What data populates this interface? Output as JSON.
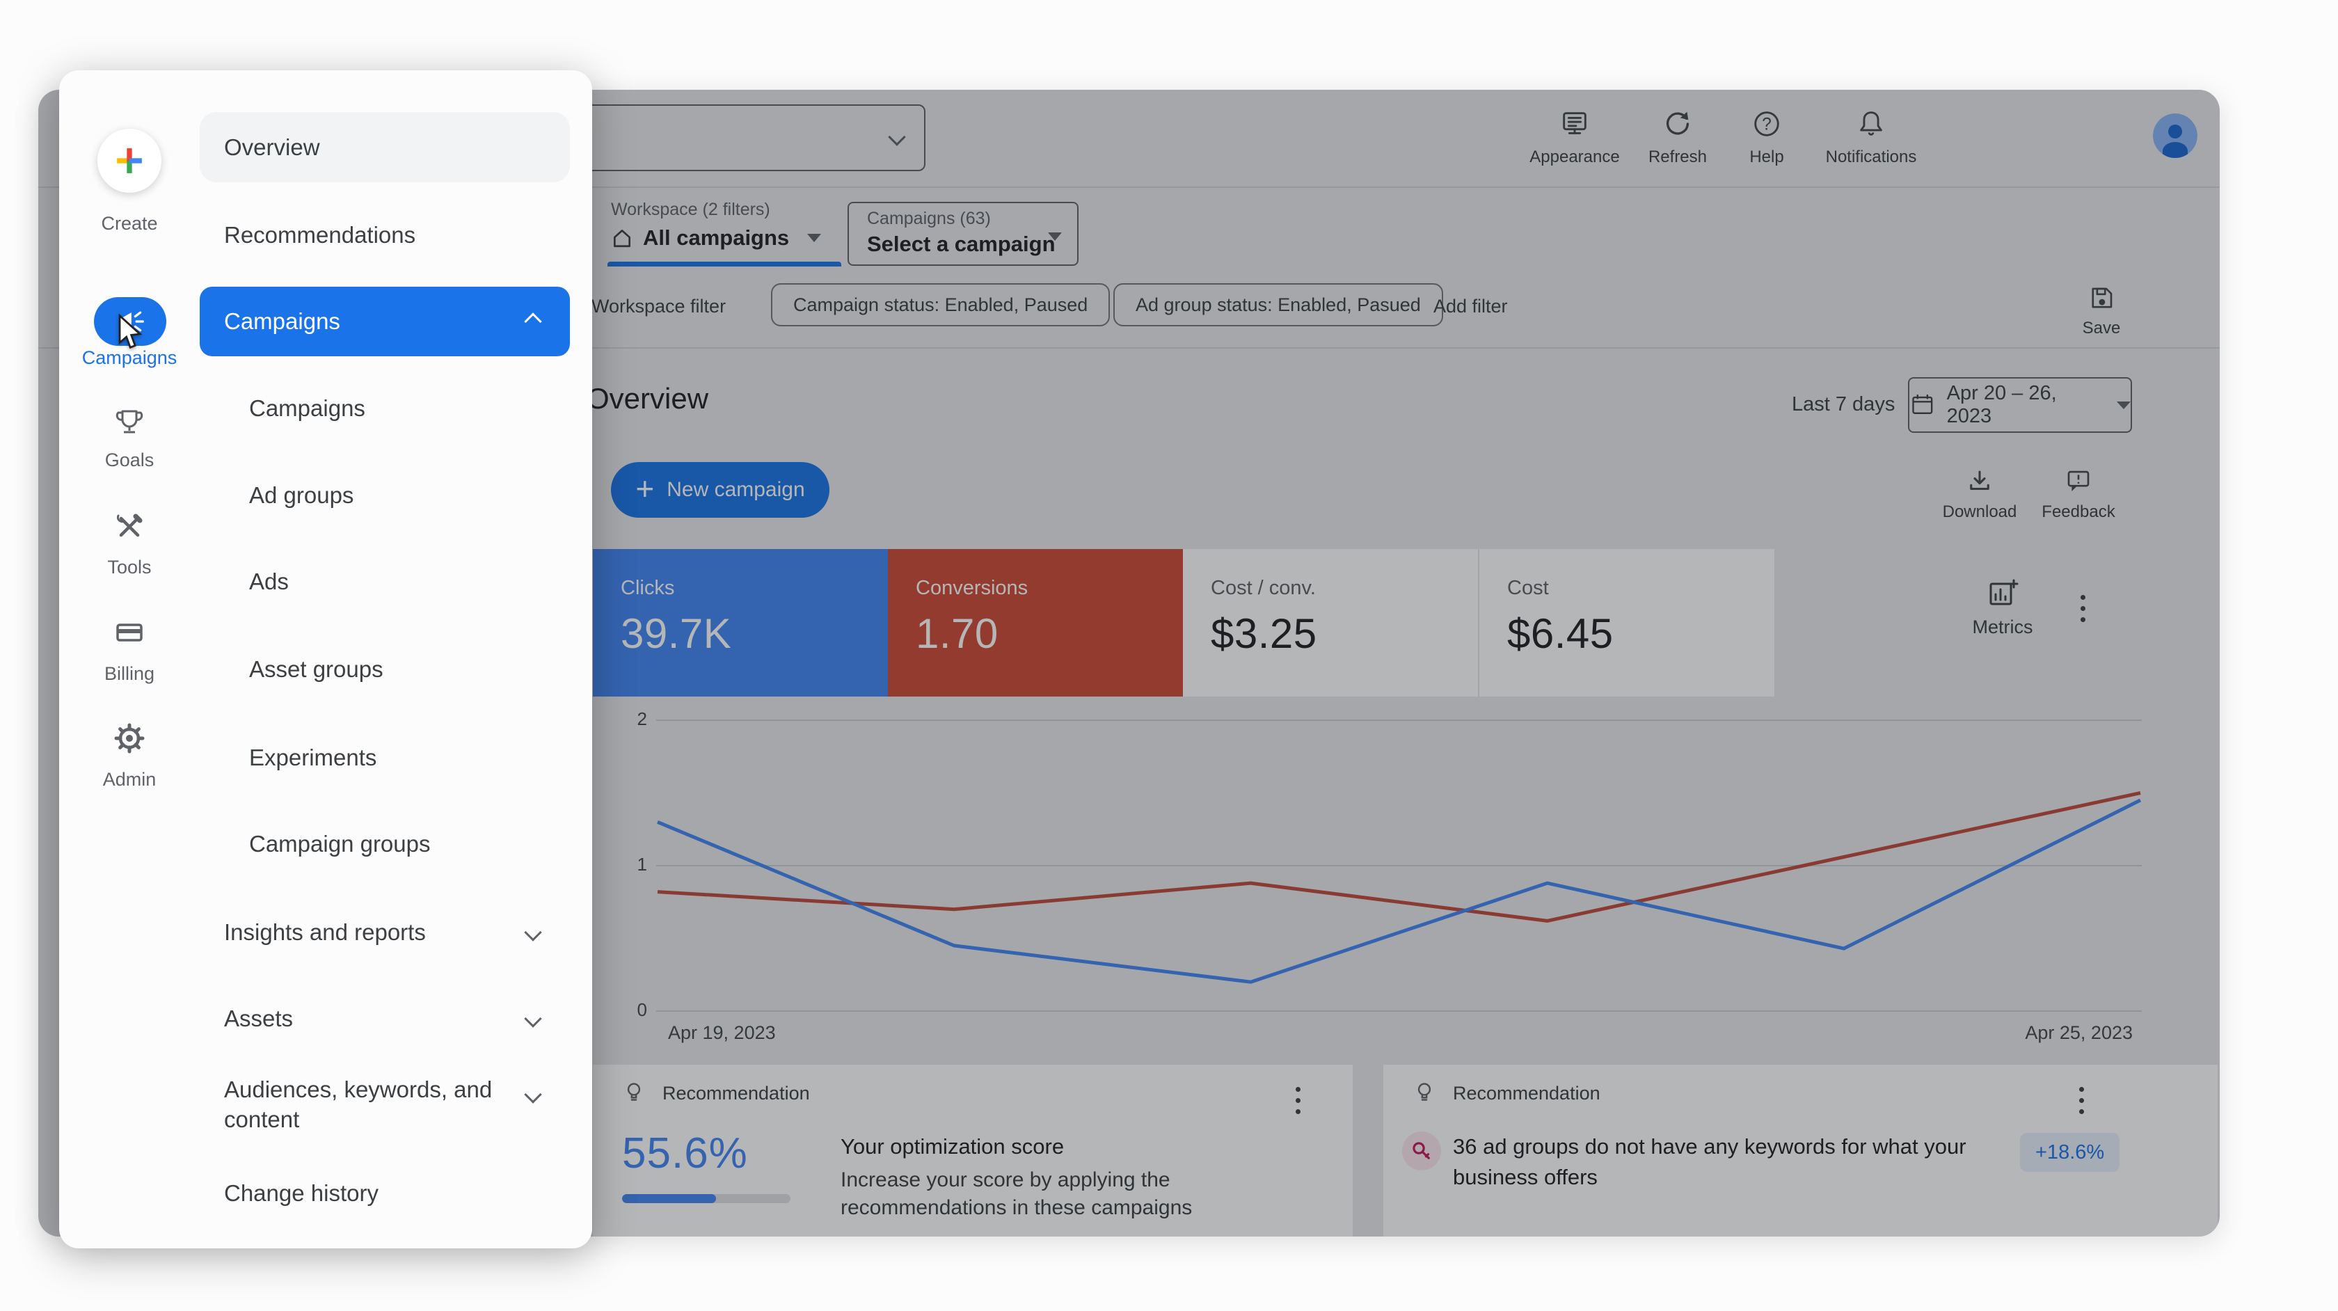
{
  "drawer": {
    "create_label": "Create",
    "rail_items": [
      {
        "label": "Campaigns",
        "icon": "megaphone-icon",
        "selected": true
      },
      {
        "label": "Goals",
        "icon": "trophy-icon",
        "selected": false
      },
      {
        "label": "Tools",
        "icon": "tools-icon",
        "selected": false
      },
      {
        "label": "Billing",
        "icon": "card-icon",
        "selected": false
      },
      {
        "label": "Admin",
        "icon": "gear-icon",
        "selected": false
      }
    ],
    "menu": {
      "overview": "Overview",
      "recommendations": "Recommendations",
      "campaigns_header": "Campaigns",
      "campaigns_items": [
        "Campaigns",
        "Ad groups",
        "Ads",
        "Asset groups",
        "Experiments",
        "Campaign groups"
      ],
      "sections": [
        "Insights and reports",
        "Assets",
        "Audiences, keywords, and content"
      ],
      "change_history": "Change history"
    }
  },
  "topbar": {
    "actions": [
      {
        "label": "Appearance",
        "icon": "appearance-icon"
      },
      {
        "label": "Refresh",
        "icon": "refresh-icon"
      },
      {
        "label": "Help",
        "icon": "help-icon"
      },
      {
        "label": "Notifications",
        "icon": "notifications-icon"
      }
    ]
  },
  "filters": {
    "workspace_selector": {
      "label": "Workspace (2 filters)",
      "value": "All campaigns"
    },
    "campaign_selector": {
      "label": "Campaigns (63)",
      "value": "Select a campaign"
    },
    "workspace_filter": "Workspace filter",
    "chips": [
      "Campaign status: Enabled, Paused",
      "Ad group status: Enabled, Pasued"
    ],
    "add_filter": "Add filter",
    "save": "Save"
  },
  "overview": {
    "title": "Overview",
    "date_preset": "Last 7 days",
    "date_range": "Apr 20 – 26, 2023",
    "new_campaign": "New campaign",
    "download": "Download",
    "feedback": "Feedback",
    "metrics": "Metrics",
    "cards": [
      {
        "label": "Clicks",
        "value": "39.7K",
        "bg": "#4285f4"
      },
      {
        "label": "Conversions",
        "value": "1.70",
        "bg": "#cf4a38"
      },
      {
        "label": "Cost / conv.",
        "value": "$3.25",
        "bg": ""
      },
      {
        "label": "Cost",
        "value": "$6.45",
        "bg": ""
      }
    ]
  },
  "chart_data": {
    "type": "line",
    "title": "",
    "x_labels_visible": [
      "Apr 19, 2023",
      "Apr 25, 2023"
    ],
    "y_ticks": [
      0,
      1,
      2
    ],
    "ylim": [
      0,
      2
    ],
    "grid": "horizontal",
    "legend": "none",
    "series": [
      {
        "name": "Clicks",
        "color": "#4285f4",
        "values": [
          1.3,
          0.45,
          0.2,
          0.88,
          0.43,
          1.45
        ]
      },
      {
        "name": "Conversions",
        "color": "#bf4a3d",
        "values": [
          0.82,
          0.7,
          0.88,
          0.62,
          1.06,
          1.5
        ]
      }
    ]
  },
  "recommendations": {
    "card1": {
      "header": "Recommendation",
      "score": "55.6%",
      "progress_pct": 55.6,
      "title": "Your optimization score",
      "body": "Increase your score by applying the recommendations in these campaigns"
    },
    "card2": {
      "header": "Recommendation",
      "text": "36 ad groups do not have any keywords for what your business offers",
      "badge": "+18.6%"
    }
  },
  "colors": {
    "accent_blue": "#1a73e8",
    "clicks_blue": "#4285f4",
    "conversions_red": "#cf4a38",
    "score_blue": "#4285f4",
    "badge_bg": "#e8f0fe",
    "badge_text": "#1a73e8",
    "chart_blue": "#4285f4",
    "chart_red": "#bf4a3d",
    "pink_icon": "#c2185b",
    "pink_icon_bg": "#fce8f0"
  }
}
